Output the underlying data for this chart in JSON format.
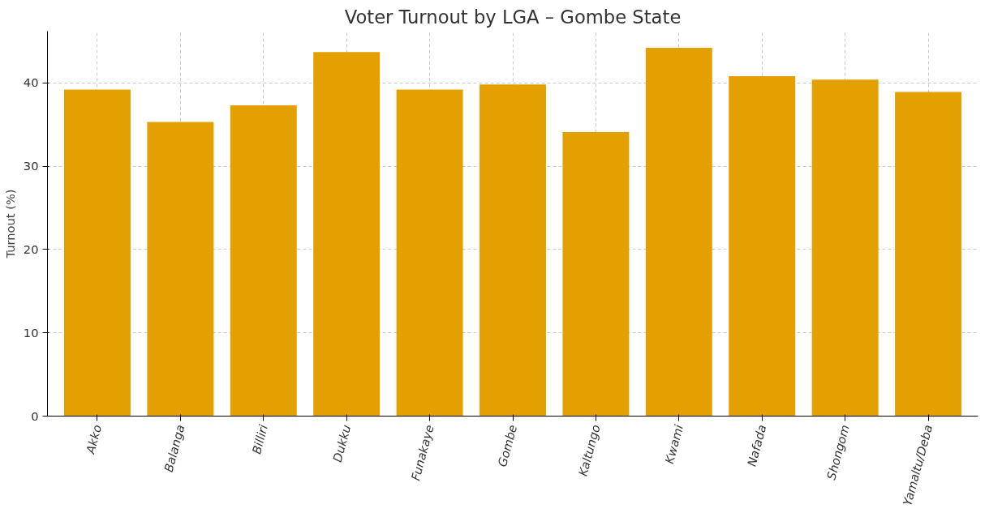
{
  "chart_data": {
    "type": "bar",
    "title": "Voter Turnout by LGA – Gombe State",
    "ylabel": "Turnout (%)",
    "categories": [
      "Akko",
      "Balanga",
      "Billiri",
      "Dukku",
      "Funakaye",
      "Gombe",
      "Kaltungo",
      "Kwami",
      "Nafada",
      "Shongom",
      "Yamaltu/Deba"
    ],
    "values": [
      39.2,
      35.3,
      37.3,
      43.7,
      39.2,
      39.8,
      34.1,
      44.2,
      40.8,
      40.4,
      38.9
    ],
    "color": "#e3a000",
    "ylim": [
      0,
      46.2
    ],
    "yticks": [
      0,
      10,
      20,
      30,
      40
    ],
    "grid": true
  }
}
